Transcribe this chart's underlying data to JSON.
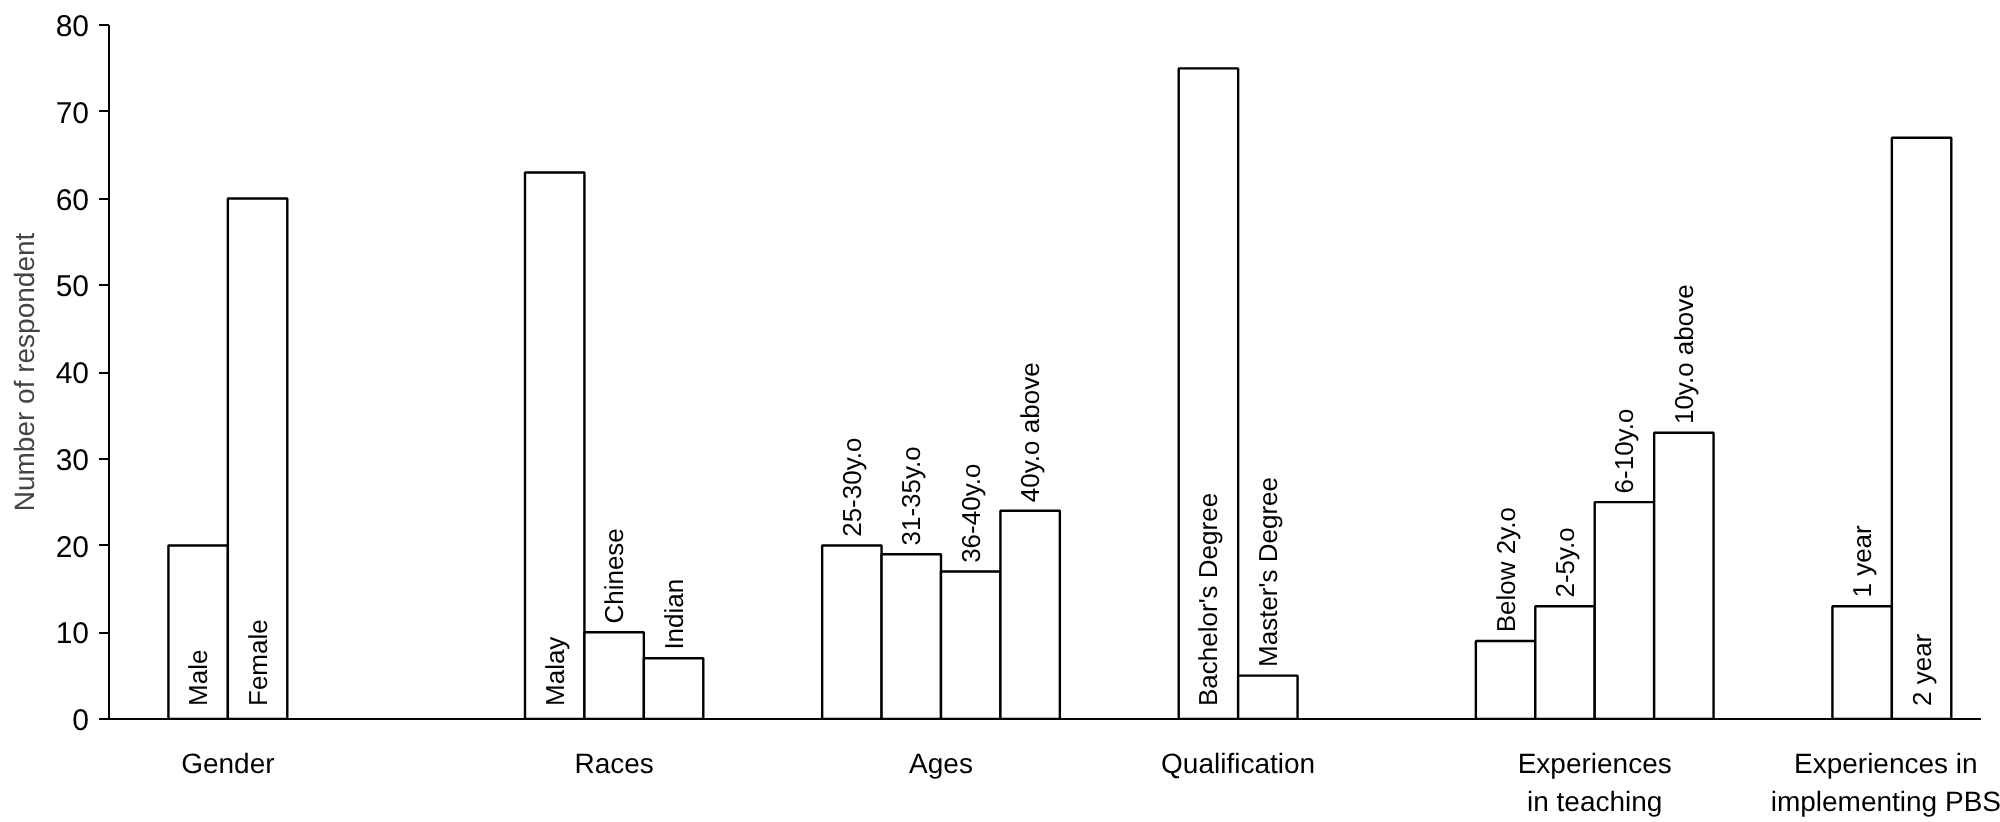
{
  "chart_data": {
    "type": "bar",
    "ylabel": "Number of respondent",
    "categories": [
      "Male",
      "Female",
      null,
      null,
      null,
      null,
      "Malay",
      "Chinese",
      "Indian",
      null,
      null,
      "25-30y.o",
      "31-35y.o",
      "36-40y.o",
      "40y.o above",
      null,
      null,
      "Bachelor's Degree",
      "Master's Degree",
      null,
      null,
      null,
      "Below 2y.o",
      "2-5y.o",
      "6-10y.o",
      "10y.o above",
      null,
      null,
      "1 year",
      "2 year"
    ],
    "values": [
      20,
      60,
      null,
      null,
      null,
      null,
      63,
      10,
      7,
      null,
      null,
      20,
      19,
      17,
      24,
      null,
      null,
      75,
      5,
      null,
      null,
      null,
      9,
      13,
      25,
      33,
      null,
      null,
      13,
      67
    ],
    "color": "#ffffff",
    "ylim": [
      0,
      80
    ],
    "yticks": [
      0,
      10,
      20,
      30,
      40,
      50,
      60,
      70,
      80
    ],
    "grid": false,
    "annotations": [
      "Gender",
      "Races",
      "Ages",
      "Qualification",
      "Experiences\nin teaching",
      "Experiences in\nimplementing PBS"
    ]
  }
}
